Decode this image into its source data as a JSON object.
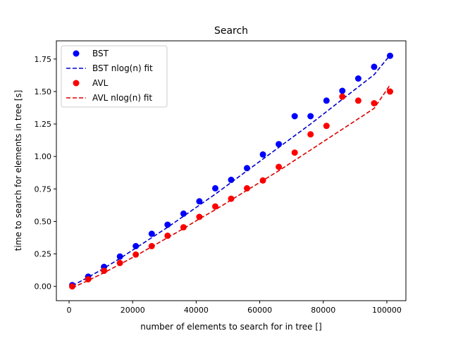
{
  "chart_data": {
    "type": "scatter",
    "title": "Search",
    "xlabel": "number of elements to search for in tree []",
    "ylabel": "time to search for elements in tree [s]",
    "xlim": [
      -4000,
      106000
    ],
    "ylim": [
      -0.11,
      1.89
    ],
    "x_ticks": [
      0,
      20000,
      40000,
      60000,
      80000,
      100000
    ],
    "x_tick_labels": [
      "0",
      "20000",
      "40000",
      "60000",
      "80000",
      "100000"
    ],
    "y_ticks": [
      0.0,
      0.25,
      0.5,
      0.75,
      1.0,
      1.25,
      1.5,
      1.75
    ],
    "y_tick_labels": [
      "0.00",
      "0.25",
      "0.50",
      "0.75",
      "1.00",
      "1.25",
      "1.50",
      "1.75"
    ],
    "grid": false,
    "legend_position": "top-left",
    "x": [
      1000,
      6000,
      11000,
      16000,
      21000,
      26000,
      31000,
      36000,
      41000,
      46000,
      51000,
      56000,
      61000,
      66000,
      71000,
      76000,
      81000,
      86000,
      91000,
      96000,
      101000
    ],
    "series": [
      {
        "name": "BST",
        "kind": "scatter",
        "color": "#0000ff",
        "values": [
          0.01,
          0.075,
          0.15,
          0.23,
          0.31,
          0.405,
          0.475,
          0.56,
          0.655,
          0.755,
          0.82,
          0.91,
          1.015,
          1.095,
          1.31,
          1.31,
          1.43,
          1.505,
          1.6,
          1.69,
          1.775
        ]
      },
      {
        "name": "BST nlog(n) fit",
        "kind": "dashed-line",
        "color": "#0000cd",
        "values": [
          0.005,
          0.07,
          0.14,
          0.215,
          0.295,
          0.375,
          0.455,
          0.54,
          0.625,
          0.71,
          0.8,
          0.89,
          0.98,
          1.07,
          1.16,
          1.25,
          1.345,
          1.44,
          1.535,
          1.63,
          1.78
        ]
      },
      {
        "name": "AVL",
        "kind": "scatter",
        "color": "#ff0000",
        "values": [
          0.0,
          0.055,
          0.12,
          0.18,
          0.245,
          0.31,
          0.39,
          0.455,
          0.535,
          0.615,
          0.675,
          0.755,
          0.815,
          0.92,
          1.03,
          1.17,
          1.235,
          1.46,
          1.43,
          1.41,
          1.5
        ]
      },
      {
        "name": "AVL nlog(n) fit",
        "kind": "dashed-line",
        "color": "#dd0000",
        "values": [
          -0.01,
          0.045,
          0.105,
          0.17,
          0.235,
          0.305,
          0.375,
          0.445,
          0.52,
          0.59,
          0.665,
          0.74,
          0.815,
          0.89,
          0.97,
          1.05,
          1.13,
          1.21,
          1.29,
          1.37,
          1.55
        ]
      }
    ]
  }
}
